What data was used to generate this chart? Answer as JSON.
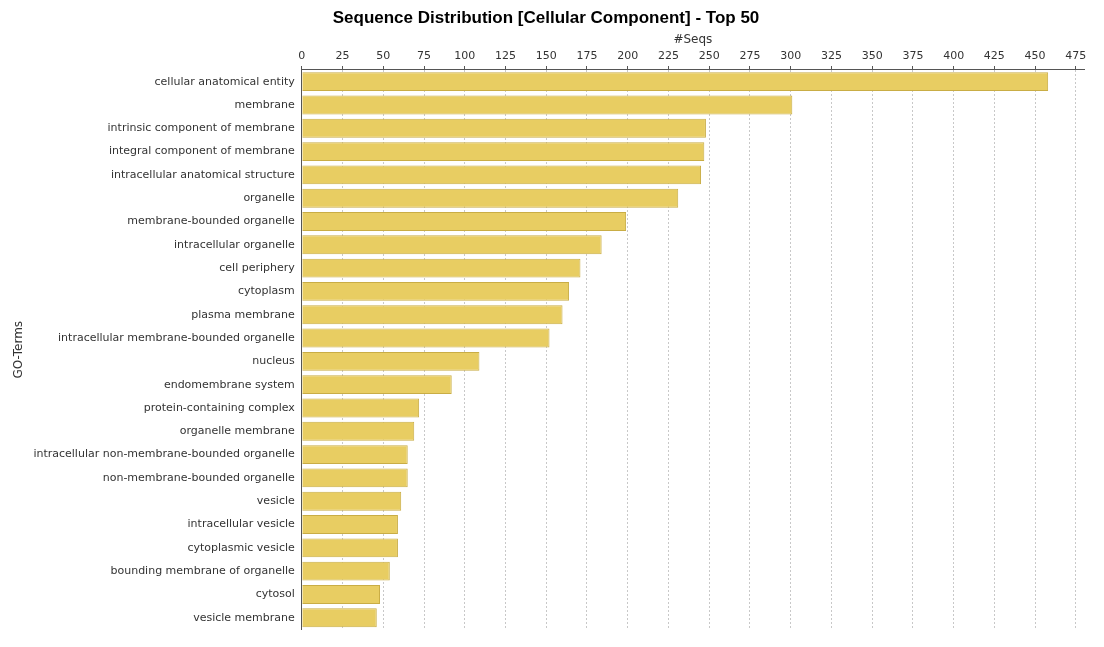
{
  "chart_data": {
    "type": "bar",
    "orientation": "horizontal",
    "title": "Sequence Distribution [Cellular Component] - Top 50",
    "xlabel": "#Seqs",
    "ylabel": "GO-Terms",
    "categories": [
      "cellular anatomical entity",
      "membrane",
      "intrinsic component of membrane",
      "integral component of membrane",
      "intracellular anatomical structure",
      "organelle",
      "membrane-bounded organelle",
      "intracellular organelle",
      "cell periphery",
      "cytoplasm",
      "plasma membrane",
      "intracellular membrane-bounded organelle",
      "nucleus",
      "endomembrane system",
      "protein-containing complex",
      "organelle membrane",
      "intracellular non-membrane-bounded organelle",
      "non-membrane-bounded organelle",
      "vesicle",
      "intracellular vesicle",
      "cytoplasmic vesicle",
      "bounding membrane of organelle",
      "cytosol",
      "vesicle membrane"
    ],
    "values": [
      458,
      301,
      248,
      247,
      245,
      231,
      199,
      184,
      171,
      164,
      160,
      152,
      109,
      92,
      72,
      69,
      65,
      65,
      61,
      59,
      59,
      54,
      48,
      46
    ],
    "color": "#e8cd62",
    "xlim": [
      0,
      480
    ],
    "xticks": [
      0,
      25,
      50,
      75,
      100,
      125,
      150,
      175,
      200,
      225,
      250,
      275,
      300,
      325,
      350,
      375,
      400,
      425,
      450,
      475
    ],
    "grid": "x",
    "legend": false
  }
}
